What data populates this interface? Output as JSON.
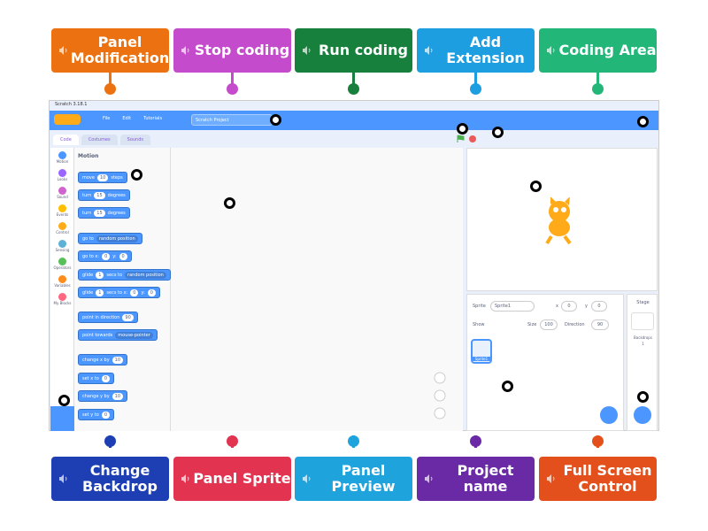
{
  "labels_top": [
    "Panel Modification",
    "Stop coding",
    "Run coding",
    "Add Extension",
    "Coding Area"
  ],
  "labels_bottom": [
    "Change Backdrop",
    "Panel Sprite",
    "Panel Preview",
    "Project name",
    "Full Screen Control"
  ],
  "window": {
    "title": "Scratch 3.18.1",
    "menu": [
      "File",
      "Edit",
      "Tutorials"
    ],
    "project_title": "Scratch Project",
    "tabs": [
      "Code",
      "Costumes",
      "Sounds"
    ],
    "categories": [
      "Motion",
      "Looks",
      "Sound",
      "Events",
      "Control",
      "Sensing",
      "Operators",
      "Variables",
      "My Blocks"
    ],
    "palette_heading": "Motion",
    "blocks": [
      [
        "move",
        10,
        "steps"
      ],
      [
        "turn",
        15,
        "degrees"
      ],
      [
        "turn",
        15,
        "degrees"
      ],
      [
        "go to",
        "random position"
      ],
      [
        "go to x:",
        0,
        "y:",
        0
      ],
      [
        "glide",
        1,
        "secs to",
        "random position"
      ],
      [
        "glide",
        1,
        "secs to x:",
        0,
        "y:",
        0
      ],
      [
        "point in direction",
        90
      ],
      [
        "point towards",
        "mouse-pointer"
      ],
      [
        "change x by",
        10
      ],
      [
        "set x to",
        0
      ],
      [
        "change y by",
        10
      ],
      [
        "set y to",
        0
      ]
    ],
    "sprite_info": {
      "sprite_label": "Sprite",
      "sprite_name": "Sprite1",
      "x_label": "x",
      "x": 0,
      "y_label": "y",
      "y": 0,
      "show_label": "Show",
      "size_label": "Size",
      "size": 100,
      "direction_label": "Direction",
      "direction": 90
    },
    "stage_panel": {
      "title": "Stage",
      "backdrops_label": "Backdrops",
      "backdrops_count": 1
    },
    "sprite_thumb": "Sprite1"
  }
}
